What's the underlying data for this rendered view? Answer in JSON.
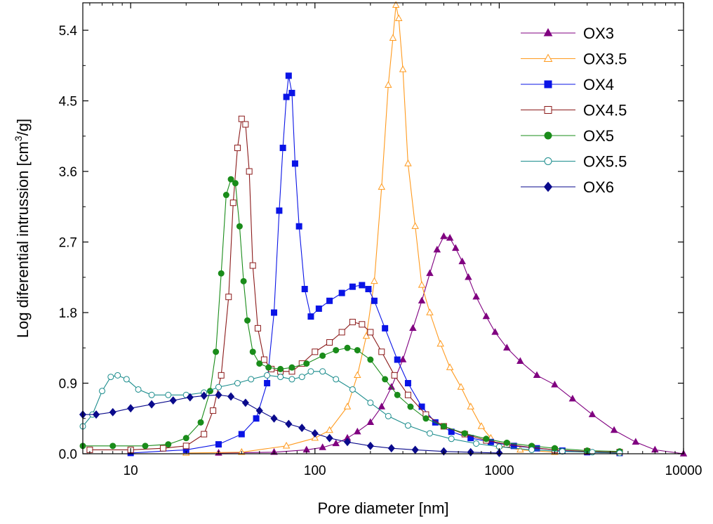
{
  "chart_data": {
    "type": "line",
    "xlabel": "Pore diameter [nm]",
    "ylabel_prefix": "Log diferential intrussion [cm",
    "ylabel_sup": "3",
    "ylabel_suffix": "/g]",
    "xscale": "log",
    "xlim": [
      5.5,
      10000
    ],
    "ylim": [
      0,
      5.75
    ],
    "xticks": [
      10,
      100,
      1000,
      10000
    ],
    "xtick_labels": [
      "10",
      "100",
      "1000",
      "10000"
    ],
    "yticks": [
      0.0,
      0.9,
      1.8,
      2.7,
      3.6,
      4.5,
      5.4
    ],
    "ytick_labels": [
      "0.0",
      "0.9",
      "1.8",
      "2.7",
      "3.6",
      "4.5",
      "5.4"
    ],
    "grid": false,
    "legend_position": "top-right",
    "series": [
      {
        "name": "OX3",
        "color": "#800080",
        "marker": "triangle",
        "filled": true,
        "points": [
          [
            30,
            0.01
          ],
          [
            60,
            0.02
          ],
          [
            90,
            0.05
          ],
          [
            110,
            0.08
          ],
          [
            130,
            0.13
          ],
          [
            150,
            0.2
          ],
          [
            170,
            0.28
          ],
          [
            200,
            0.4
          ],
          [
            230,
            0.6
          ],
          [
            260,
            0.85
          ],
          [
            300,
            1.2
          ],
          [
            340,
            1.6
          ],
          [
            380,
            1.95
          ],
          [
            420,
            2.3
          ],
          [
            460,
            2.6
          ],
          [
            500,
            2.77
          ],
          [
            540,
            2.75
          ],
          [
            580,
            2.62
          ],
          [
            630,
            2.45
          ],
          [
            680,
            2.25
          ],
          [
            750,
            2.0
          ],
          [
            850,
            1.75
          ],
          [
            950,
            1.55
          ],
          [
            1100,
            1.35
          ],
          [
            1300,
            1.18
          ],
          [
            1600,
            1.0
          ],
          [
            2000,
            0.88
          ],
          [
            2500,
            0.7
          ],
          [
            3200,
            0.5
          ],
          [
            4200,
            0.3
          ],
          [
            5500,
            0.15
          ],
          [
            7000,
            0.05
          ],
          [
            10000,
            0.0
          ]
        ]
      },
      {
        "name": "OX3.5",
        "color": "#FF9A1E",
        "marker": "triangle",
        "filled": false,
        "points": [
          [
            20,
            0.01
          ],
          [
            40,
            0.02
          ],
          [
            70,
            0.1
          ],
          [
            100,
            0.2
          ],
          [
            120,
            0.3
          ],
          [
            150,
            0.6
          ],
          [
            170,
            1.0
          ],
          [
            190,
            1.5
          ],
          [
            210,
            2.2
          ],
          [
            230,
            3.4
          ],
          [
            250,
            4.7
          ],
          [
            265,
            5.3
          ],
          [
            275,
            5.72
          ],
          [
            285,
            5.55
          ],
          [
            300,
            4.9
          ],
          [
            320,
            3.7
          ],
          [
            350,
            2.9
          ],
          [
            380,
            2.15
          ],
          [
            420,
            1.8
          ],
          [
            480,
            1.4
          ],
          [
            540,
            1.1
          ],
          [
            620,
            0.85
          ],
          [
            700,
            0.6
          ],
          [
            800,
            0.35
          ],
          [
            900,
            0.2
          ],
          [
            1000,
            0.1
          ],
          [
            1300,
            0.05
          ],
          [
            2000,
            0.02
          ]
        ]
      },
      {
        "name": "OX4",
        "color": "#0A14E6",
        "marker": "square",
        "filled": true,
        "points": [
          [
            10,
            0.01
          ],
          [
            20,
            0.05
          ],
          [
            30,
            0.12
          ],
          [
            40,
            0.25
          ],
          [
            48,
            0.45
          ],
          [
            55,
            0.9
          ],
          [
            60,
            1.8
          ],
          [
            64,
            3.1
          ],
          [
            67,
            3.9
          ],
          [
            70,
            4.55
          ],
          [
            72,
            4.82
          ],
          [
            75,
            4.6
          ],
          [
            78,
            3.7
          ],
          [
            82,
            2.9
          ],
          [
            88,
            2.1
          ],
          [
            95,
            1.75
          ],
          [
            105,
            1.85
          ],
          [
            120,
            1.95
          ],
          [
            140,
            2.05
          ],
          [
            160,
            2.13
          ],
          [
            180,
            2.15
          ],
          [
            195,
            2.1
          ],
          [
            210,
            1.95
          ],
          [
            240,
            1.6
          ],
          [
            280,
            1.2
          ],
          [
            320,
            0.9
          ],
          [
            380,
            0.6
          ],
          [
            450,
            0.4
          ],
          [
            550,
            0.28
          ],
          [
            700,
            0.2
          ],
          [
            900,
            0.15
          ],
          [
            1200,
            0.1
          ],
          [
            1600,
            0.07
          ],
          [
            2200,
            0.04
          ],
          [
            3000,
            0.02
          ],
          [
            4500,
            0.01
          ]
        ]
      },
      {
        "name": "OX4.5",
        "color": "#8B1A1A",
        "marker": "square",
        "filled": false,
        "points": [
          [
            6,
            0.05
          ],
          [
            10,
            0.05
          ],
          [
            15,
            0.07
          ],
          [
            20,
            0.1
          ],
          [
            25,
            0.25
          ],
          [
            28,
            0.55
          ],
          [
            31,
            1.0
          ],
          [
            34,
            2.0
          ],
          [
            36,
            3.2
          ],
          [
            38,
            3.9
          ],
          [
            40,
            4.27
          ],
          [
            42,
            4.2
          ],
          [
            44,
            3.6
          ],
          [
            46,
            2.4
          ],
          [
            49,
            1.6
          ],
          [
            53,
            1.2
          ],
          [
            58,
            1.08
          ],
          [
            65,
            1.05
          ],
          [
            75,
            1.05
          ],
          [
            85,
            1.15
          ],
          [
            100,
            1.3
          ],
          [
            120,
            1.42
          ],
          [
            140,
            1.55
          ],
          [
            160,
            1.68
          ],
          [
            180,
            1.65
          ],
          [
            200,
            1.55
          ],
          [
            230,
            1.3
          ],
          [
            270,
            1.0
          ],
          [
            320,
            0.75
          ],
          [
            400,
            0.5
          ],
          [
            500,
            0.35
          ],
          [
            650,
            0.25
          ],
          [
            850,
            0.17
          ],
          [
            1100,
            0.12
          ],
          [
            1500,
            0.08
          ],
          [
            2000,
            0.05
          ],
          [
            3000,
            0.03
          ],
          [
            4500,
            0.02
          ]
        ]
      },
      {
        "name": "OX5",
        "color": "#1A8C1A",
        "marker": "circle",
        "filled": true,
        "points": [
          [
            5.5,
            0.1
          ],
          [
            8,
            0.1
          ],
          [
            12,
            0.1
          ],
          [
            16,
            0.12
          ],
          [
            20,
            0.2
          ],
          [
            24,
            0.4
          ],
          [
            27,
            0.8
          ],
          [
            29,
            1.3
          ],
          [
            31,
            2.3
          ],
          [
            33,
            3.3
          ],
          [
            35,
            3.5
          ],
          [
            37,
            3.45
          ],
          [
            39,
            2.9
          ],
          [
            41,
            2.2
          ],
          [
            43,
            1.7
          ],
          [
            46,
            1.3
          ],
          [
            50,
            1.15
          ],
          [
            56,
            1.1
          ],
          [
            65,
            1.08
          ],
          [
            75,
            1.1
          ],
          [
            90,
            1.15
          ],
          [
            110,
            1.25
          ],
          [
            130,
            1.32
          ],
          [
            150,
            1.35
          ],
          [
            170,
            1.32
          ],
          [
            200,
            1.2
          ],
          [
            240,
            0.95
          ],
          [
            280,
            0.75
          ],
          [
            330,
            0.6
          ],
          [
            400,
            0.45
          ],
          [
            500,
            0.35
          ],
          [
            650,
            0.26
          ],
          [
            850,
            0.19
          ],
          [
            1100,
            0.14
          ],
          [
            1500,
            0.1
          ],
          [
            2000,
            0.07
          ],
          [
            3000,
            0.04
          ],
          [
            4500,
            0.03
          ]
        ]
      },
      {
        "name": "OX5.5",
        "color": "#1A8C8C",
        "marker": "circle",
        "filled": false,
        "points": [
          [
            5.5,
            0.35
          ],
          [
            6.2,
            0.5
          ],
          [
            7,
            0.8
          ],
          [
            7.8,
            0.98
          ],
          [
            8.5,
            1.0
          ],
          [
            9.5,
            0.95
          ],
          [
            11,
            0.82
          ],
          [
            13,
            0.75
          ],
          [
            16,
            0.75
          ],
          [
            20,
            0.75
          ],
          [
            25,
            0.78
          ],
          [
            30,
            0.85
          ],
          [
            38,
            0.9
          ],
          [
            45,
            0.95
          ],
          [
            55,
            1.0
          ],
          [
            65,
            0.98
          ],
          [
            75,
            0.95
          ],
          [
            85,
            0.98
          ],
          [
            95,
            1.05
          ],
          [
            110,
            1.05
          ],
          [
            130,
            0.95
          ],
          [
            160,
            0.82
          ],
          [
            200,
            0.65
          ],
          [
            250,
            0.48
          ],
          [
            320,
            0.36
          ],
          [
            420,
            0.26
          ],
          [
            550,
            0.19
          ],
          [
            750,
            0.13
          ],
          [
            1000,
            0.09
          ],
          [
            1500,
            0.05
          ],
          [
            2200,
            0.03
          ],
          [
            3200,
            0.02
          ],
          [
            4500,
            0.01
          ]
        ]
      },
      {
        "name": "OX6",
        "color": "#0A0A8C",
        "marker": "diamond",
        "filled": true,
        "points": [
          [
            5.5,
            0.5
          ],
          [
            6.5,
            0.5
          ],
          [
            8,
            0.53
          ],
          [
            10,
            0.58
          ],
          [
            13,
            0.63
          ],
          [
            17,
            0.68
          ],
          [
            21,
            0.72
          ],
          [
            25,
            0.74
          ],
          [
            30,
            0.75
          ],
          [
            35,
            0.73
          ],
          [
            42,
            0.65
          ],
          [
            50,
            0.55
          ],
          [
            60,
            0.45
          ],
          [
            72,
            0.38
          ],
          [
            85,
            0.33
          ],
          [
            100,
            0.26
          ],
          [
            120,
            0.2
          ],
          [
            150,
            0.15
          ],
          [
            200,
            0.1
          ],
          [
            260,
            0.07
          ],
          [
            350,
            0.05
          ],
          [
            500,
            0.03
          ],
          [
            700,
            0.02
          ],
          [
            1000,
            0.01
          ]
        ]
      }
    ]
  }
}
